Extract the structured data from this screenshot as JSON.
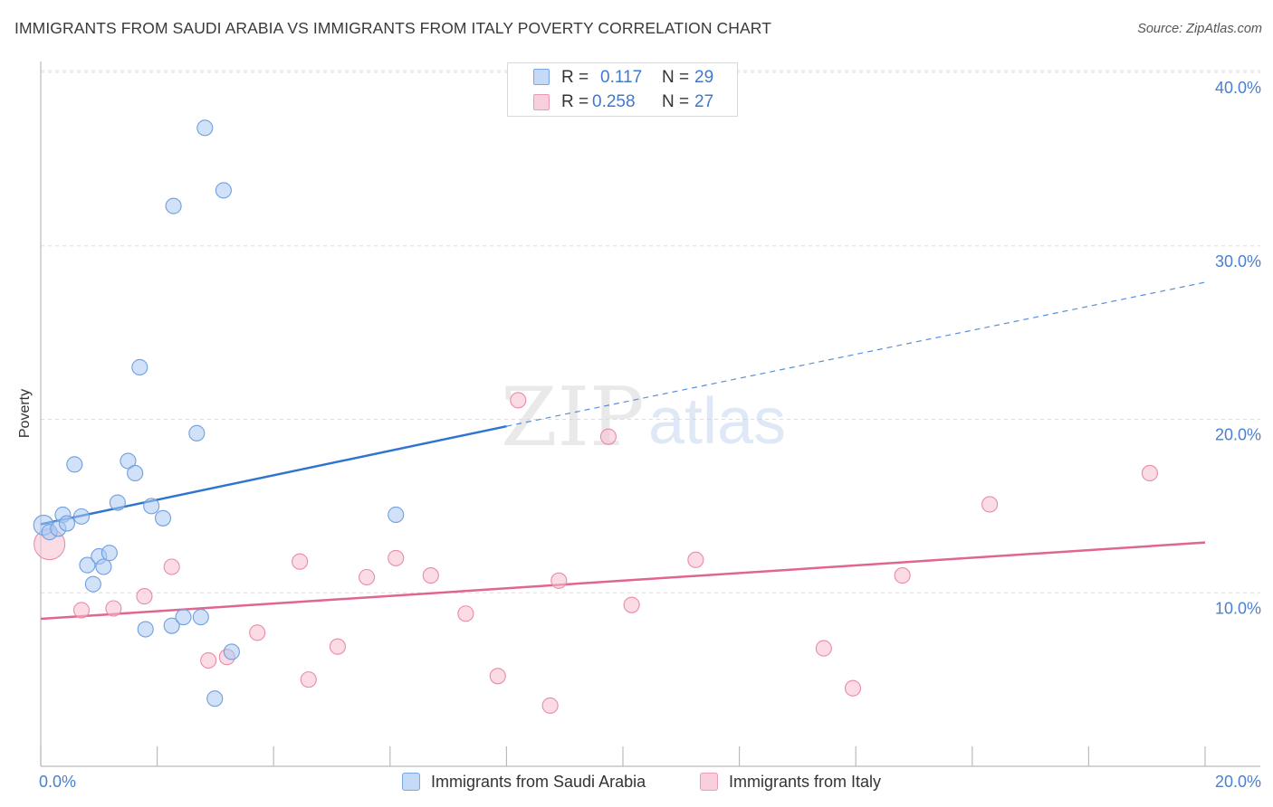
{
  "title": "IMMIGRANTS FROM SAUDI ARABIA VS IMMIGRANTS FROM ITALY POVERTY CORRELATION CHART",
  "source": "Source: ZipAtlas.com",
  "watermark": {
    "zip": "ZIP",
    "atlas": "atlas"
  },
  "colors": {
    "blue_fill": "#a9c8f2",
    "blue_stroke": "#6f9fe0",
    "blue_line": "#2f74d0",
    "pink_fill": "#f7bfd0",
    "pink_stroke": "#e98aa8",
    "pink_line": "#e0668f",
    "tick_text": "#4a7fd0",
    "grid": "#dddddd"
  },
  "legend": {
    "rows": [
      {
        "r_label": "R =",
        "r_value": "0.117",
        "n_label": "N =",
        "n_value": "29"
      },
      {
        "r_label": "R =",
        "r_value": "0.258",
        "n_label": "N =",
        "n_value": "27"
      }
    ]
  },
  "bottom_legend": {
    "saudi": "Immigrants from Saudi Arabia",
    "italy": "Immigrants from Italy"
  },
  "chart_data": {
    "type": "scatter",
    "title": "IMMIGRANTS FROM SAUDI ARABIA VS IMMIGRANTS FROM ITALY POVERTY CORRELATION CHART",
    "xlabel": "",
    "ylabel": "Poverty",
    "xlim": [
      0,
      20
    ],
    "ylim": [
      0,
      40
    ],
    "x_tick_labels": [
      "0.0%",
      "20.0%"
    ],
    "y_ticks": [
      10,
      20,
      30,
      40
    ],
    "y_tick_labels": [
      "10.0%",
      "20.0%",
      "30.0%",
      "40.0%"
    ],
    "grid": true,
    "legend_position": "top-center",
    "series": [
      {
        "name": "Immigrants from Saudi Arabia",
        "r": 0.117,
        "n": 29,
        "points": [
          [
            0.05,
            13.9
          ],
          [
            0.15,
            13.5
          ],
          [
            0.3,
            13.7
          ],
          [
            0.38,
            14.5
          ],
          [
            0.45,
            14.0
          ],
          [
            0.58,
            17.4
          ],
          [
            0.7,
            14.4
          ],
          [
            0.8,
            11.6
          ],
          [
            0.9,
            10.5
          ],
          [
            1.0,
            12.1
          ],
          [
            1.08,
            11.5
          ],
          [
            1.18,
            12.3
          ],
          [
            1.32,
            15.2
          ],
          [
            1.5,
            17.6
          ],
          [
            1.62,
            16.9
          ],
          [
            1.7,
            23.0
          ],
          [
            1.9,
            15.0
          ],
          [
            2.1,
            14.3
          ],
          [
            1.8,
            7.9
          ],
          [
            2.25,
            8.1
          ],
          [
            2.45,
            8.6
          ],
          [
            2.75,
            8.6
          ],
          [
            2.68,
            19.2
          ],
          [
            2.28,
            32.3
          ],
          [
            2.82,
            36.8
          ],
          [
            3.14,
            33.2
          ],
          [
            3.28,
            6.6
          ],
          [
            2.99,
            3.9
          ],
          [
            6.1,
            14.5
          ]
        ],
        "trend": {
          "x0": 0,
          "y0": 13.95,
          "x1": 8,
          "y1": 19.6,
          "dashed_to_x": 20,
          "dashed_to_y": 27.9
        }
      },
      {
        "name": "Immigrants from Italy",
        "r": 0.258,
        "n": 27,
        "points": [
          [
            0.15,
            12.8
          ],
          [
            0.7,
            9.0
          ],
          [
            1.25,
            9.1
          ],
          [
            1.78,
            9.8
          ],
          [
            2.25,
            11.5
          ],
          [
            2.88,
            6.1
          ],
          [
            3.2,
            6.3
          ],
          [
            3.72,
            7.7
          ],
          [
            4.45,
            11.8
          ],
          [
            4.6,
            5.0
          ],
          [
            5.1,
            6.9
          ],
          [
            5.6,
            10.9
          ],
          [
            6.1,
            12.0
          ],
          [
            6.7,
            11.0
          ],
          [
            7.3,
            8.8
          ],
          [
            7.85,
            5.2
          ],
          [
            8.2,
            21.1
          ],
          [
            8.75,
            3.5
          ],
          [
            8.9,
            10.7
          ],
          [
            9.75,
            19.0
          ],
          [
            10.15,
            9.3
          ],
          [
            11.25,
            11.9
          ],
          [
            13.45,
            6.8
          ],
          [
            13.95,
            4.5
          ],
          [
            14.8,
            11.0
          ],
          [
            16.3,
            15.1
          ],
          [
            19.05,
            16.9
          ]
        ],
        "trend": {
          "x0": 0,
          "y0": 8.5,
          "x1": 20,
          "y1": 12.9
        }
      }
    ]
  }
}
